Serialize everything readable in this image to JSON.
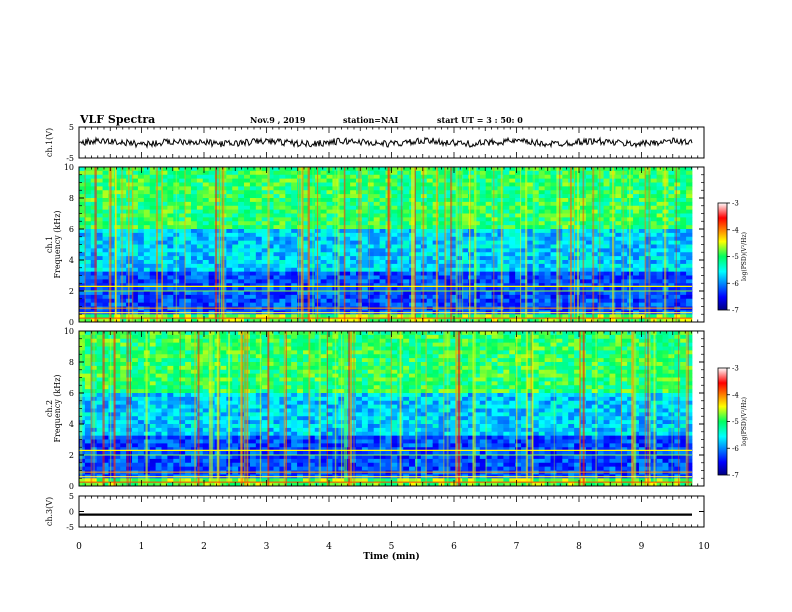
{
  "header": {
    "title": "VLF Spectra",
    "date": "Nov.9 , 2019",
    "station": "station=NAI",
    "start_ut": "start UT = 3 : 50: 0"
  },
  "chart_data": [
    {
      "type": "line",
      "panel": "ch1-waveform",
      "ylabel": "ch.1(V)",
      "ylim": [
        -5,
        5
      ],
      "yticks": [
        "5",
        "-5"
      ],
      "xlim": [
        0,
        10
      ],
      "note_values": "continuous noisy trace centred near 0 V, amplitude about ±1 V"
    },
    {
      "type": "heatmap",
      "panel": "ch1-spectrogram",
      "ylabel_top": "ch.1",
      "ylabel": "Frequency (kHz)",
      "ylim": [
        0,
        10
      ],
      "yticks": [
        "0",
        "2",
        "4",
        "6",
        "8",
        "10"
      ],
      "xlim": [
        0,
        10
      ],
      "colorbar": {
        "label": "log(PSD)(V²/Hz)",
        "ticks": [
          "-3",
          "-4",
          "-5",
          "-6",
          "-7"
        ],
        "range": [
          -7,
          -3
        ]
      }
    },
    {
      "type": "heatmap",
      "panel": "ch2-spectrogram",
      "ylabel_top": "ch.2",
      "ylabel": "Frequency (kHz)",
      "ylim": [
        0,
        10
      ],
      "yticks": [
        "0",
        "2",
        "4",
        "6",
        "8",
        "10"
      ],
      "xlim": [
        0,
        10
      ],
      "colorbar": {
        "label": "log(PSD)(V²/Hz)",
        "ticks": [
          "-3",
          "-4",
          "-5",
          "-6",
          "-7"
        ],
        "range": [
          -7,
          -3
        ]
      }
    },
    {
      "type": "line",
      "panel": "ch3-waveform",
      "ylabel": "ch.3(V)",
      "ylim": [
        -5,
        5
      ],
      "yticks": [
        "5",
        "0",
        "-5"
      ],
      "xlim": [
        0,
        10
      ],
      "note_values": "flat trace near -1 V"
    }
  ],
  "xaxis": {
    "label": "Time (min)",
    "ticks": [
      "0",
      "1",
      "2",
      "3",
      "4",
      "5",
      "6",
      "7",
      "8",
      "9",
      "10"
    ]
  }
}
